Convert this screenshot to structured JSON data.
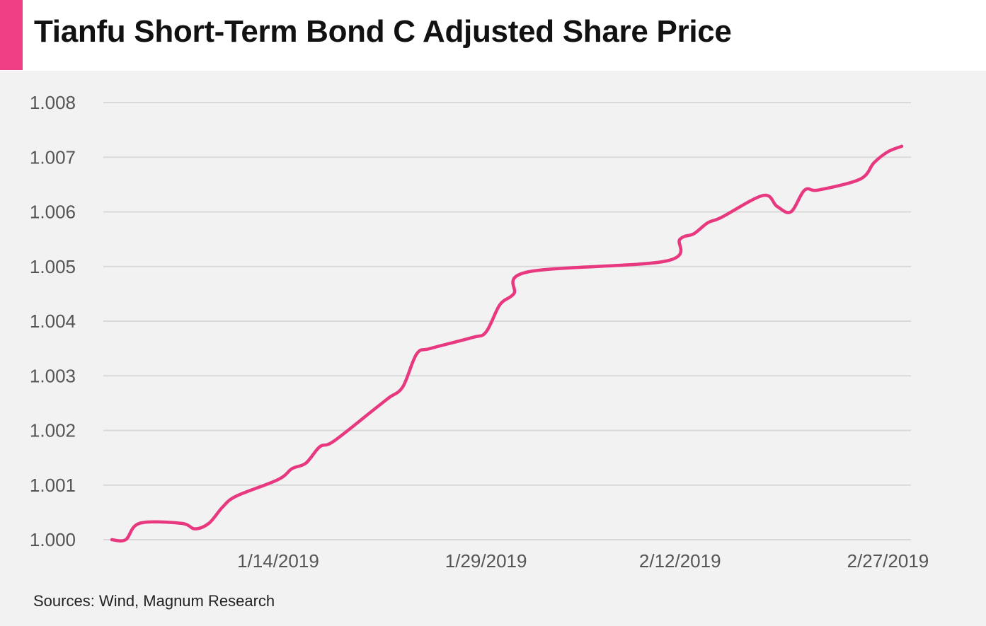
{
  "header": {
    "title": "Tianfu Short-Term Bond C Adjusted Share Price"
  },
  "footer": {
    "source": "Sources:  Wind, Magnum Research"
  },
  "colors": {
    "accent": "#ee3f85",
    "line": "#e8387f",
    "grid": "#d9d9d9",
    "background": "#f2f2f2",
    "tick_text": "#555555"
  },
  "chart_data": {
    "type": "line",
    "title": "Tianfu Short-Term Bond C Adjusted Share Price",
    "xlabel": "",
    "ylabel": "",
    "ylim": [
      1.0,
      1.008
    ],
    "yticks": [
      "1.000",
      "1.001",
      "1.002",
      "1.003",
      "1.004",
      "1.005",
      "1.006",
      "1.007",
      "1.008"
    ],
    "xticks": [
      "1/14/2019",
      "1/29/2019",
      "2/12/2019",
      "2/27/2019"
    ],
    "xlim": [
      "2019-01-02",
      "2019-02-28"
    ],
    "grid": true,
    "legend": "none",
    "series": [
      {
        "x": [
          "2019-01-02",
          "2019-01-03",
          "2019-01-04",
          "2019-01-07",
          "2019-01-08",
          "2019-01-09",
          "2019-01-10",
          "2019-01-11",
          "2019-01-14",
          "2019-01-15",
          "2019-01-16",
          "2019-01-17",
          "2019-01-18",
          "2019-01-21",
          "2019-01-22",
          "2019-01-23",
          "2019-01-24",
          "2019-01-25",
          "2019-01-28",
          "2019-01-29",
          "2019-01-30",
          "2019-01-31",
          "2019-02-01",
          "2019-02-11",
          "2019-02-12",
          "2019-02-13",
          "2019-02-14",
          "2019-02-15",
          "2019-02-18",
          "2019-02-19",
          "2019-02-20",
          "2019-02-21",
          "2019-02-22",
          "2019-02-25",
          "2019-02-26",
          "2019-02-27",
          "2019-02-28"
        ],
        "values": [
          1.0,
          1.0,
          1.0003,
          1.0003,
          1.0002,
          1.0003,
          1.0006,
          1.0008,
          1.0011,
          1.0013,
          1.0014,
          1.0017,
          1.0018,
          1.0024,
          1.0026,
          1.0028,
          1.0034,
          1.0035,
          1.0037,
          1.0038,
          1.0043,
          1.0045,
          1.0049,
          1.0051,
          1.0055,
          1.0056,
          1.0058,
          1.0059,
          1.0063,
          1.0061,
          1.006,
          1.0064,
          1.0064,
          1.0066,
          1.0069,
          1.0071,
          1.0072
        ]
      }
    ]
  }
}
